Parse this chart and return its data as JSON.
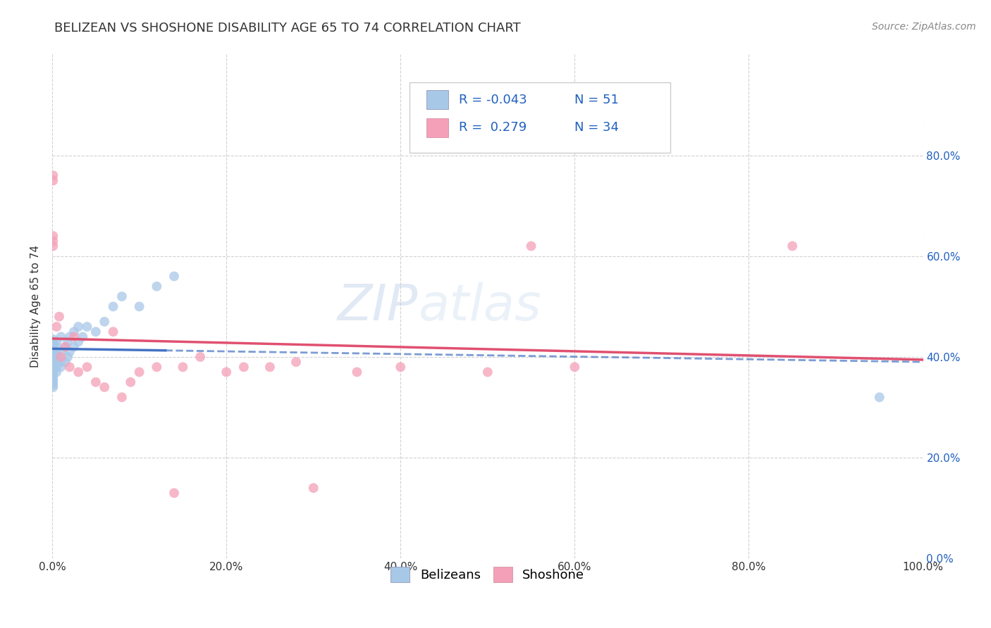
{
  "title": "BELIZEAN VS SHOSHONE DISABILITY AGE 65 TO 74 CORRELATION CHART",
  "source": "Source: ZipAtlas.com",
  "ylabel": "Disability Age 65 to 74",
  "xlim": [
    0.0,
    1.0
  ],
  "ylim": [
    0.0,
    1.0
  ],
  "xticks": [
    0.0,
    0.2,
    0.4,
    0.6,
    0.8,
    1.0
  ],
  "xtick_labels": [
    "0.0%",
    "20.0%",
    "40.0%",
    "60.0%",
    "80.0%",
    "100.0%"
  ],
  "yticks": [
    0.0,
    0.2,
    0.4,
    0.6,
    0.8
  ],
  "ytick_labels_right": [
    "0.0%",
    "20.0%",
    "40.0%",
    "60.0%",
    "80.0%"
  ],
  "belizean_R": "-0.043",
  "belizean_N": "51",
  "shoshone_R": "0.279",
  "shoshone_N": "34",
  "belizean_color": "#a8c8e8",
  "shoshone_color": "#f4a0b8",
  "belizean_line_color": "#4472c4",
  "shoshone_line_color": "#e05070",
  "background_color": "#ffffff",
  "grid_color": "#cccccc",
  "watermark_zip": "ZIP",
  "watermark_atlas": "atlas",
  "legend_R_color": "#2060c0",
  "legend_label_color": "#333333",
  "belizean_x": [
    0.001,
    0.001,
    0.001,
    0.001,
    0.001,
    0.001,
    0.001,
    0.001,
    0.001,
    0.001,
    0.001,
    0.001,
    0.001,
    0.001,
    0.001,
    0.001,
    0.001,
    0.001,
    0.001,
    0.001,
    0.005,
    0.005,
    0.005,
    0.005,
    0.005,
    0.005,
    0.005,
    0.01,
    0.01,
    0.01,
    0.01,
    0.015,
    0.015,
    0.018,
    0.018,
    0.02,
    0.02,
    0.025,
    0.025,
    0.03,
    0.03,
    0.035,
    0.04,
    0.05,
    0.06,
    0.07,
    0.08,
    0.1,
    0.12,
    0.14,
    0.95
  ],
  "belizean_y": [
    0.34,
    0.345,
    0.35,
    0.355,
    0.36,
    0.365,
    0.37,
    0.375,
    0.38,
    0.385,
    0.39,
    0.395,
    0.4,
    0.405,
    0.41,
    0.415,
    0.42,
    0.425,
    0.43,
    0.435,
    0.37,
    0.38,
    0.39,
    0.4,
    0.41,
    0.42,
    0.43,
    0.38,
    0.39,
    0.41,
    0.44,
    0.39,
    0.42,
    0.4,
    0.43,
    0.41,
    0.44,
    0.42,
    0.45,
    0.43,
    0.46,
    0.44,
    0.46,
    0.45,
    0.47,
    0.5,
    0.52,
    0.5,
    0.54,
    0.56,
    0.32
  ],
  "shoshone_x": [
    0.001,
    0.001,
    0.001,
    0.001,
    0.001,
    0.005,
    0.008,
    0.01,
    0.015,
    0.02,
    0.025,
    0.03,
    0.04,
    0.05,
    0.06,
    0.07,
    0.08,
    0.09,
    0.1,
    0.12,
    0.14,
    0.15,
    0.17,
    0.2,
    0.22,
    0.25,
    0.28,
    0.3,
    0.35,
    0.4,
    0.5,
    0.55,
    0.6,
    0.85
  ],
  "shoshone_y": [
    0.62,
    0.63,
    0.64,
    0.75,
    0.76,
    0.46,
    0.48,
    0.4,
    0.42,
    0.38,
    0.44,
    0.37,
    0.38,
    0.35,
    0.34,
    0.45,
    0.32,
    0.35,
    0.37,
    0.38,
    0.13,
    0.38,
    0.4,
    0.37,
    0.38,
    0.38,
    0.39,
    0.14,
    0.37,
    0.38,
    0.37,
    0.62,
    0.38,
    0.62
  ],
  "title_fontsize": 13,
  "axis_fontsize": 11,
  "tick_fontsize": 11,
  "source_fontsize": 10,
  "legend_fontsize": 13,
  "marker_size": 100
}
